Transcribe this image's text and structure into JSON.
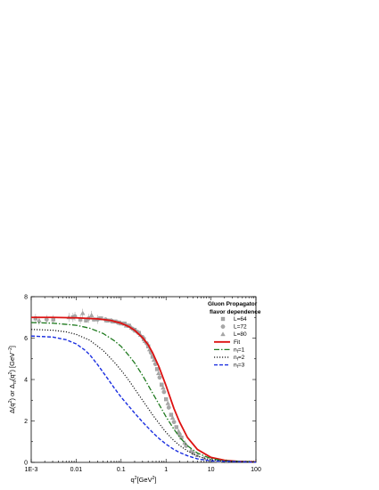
{
  "chart_data": {
    "type": "line",
    "xscale": "log",
    "xlim": [
      0.001,
      100
    ],
    "ylim": [
      0,
      8
    ],
    "xlabel": "q²[GeV²]",
    "ylabel": "Δ(q²) or Δ_{nf}(q²) [GeV⁻²]",
    "x_tick_labels": [
      "1E-3",
      "0.01",
      "0.1",
      "1",
      "10",
      "100"
    ],
    "y_tick_labels": [
      "0",
      "2",
      "4",
      "6",
      "8"
    ],
    "legend": {
      "title_line1": "Gluon Propagator",
      "title_line2": "flavor dependence",
      "position": "top-right"
    },
    "series": [
      {
        "name": "L=64",
        "kind": "markers",
        "marker": "square",
        "color": "#a8a8a8",
        "x": [
          0.00125,
          0.0031,
          0.0085,
          0.0124,
          0.0166,
          0.025,
          0.036,
          0.05,
          0.07,
          0.09,
          0.12,
          0.15,
          0.2,
          0.25,
          0.32,
          0.4,
          0.5,
          0.63,
          0.8,
          1.0,
          1.3,
          1.7,
          2.2
        ],
        "y": [
          6.95,
          6.9,
          7.0,
          6.9,
          6.85,
          6.9,
          6.95,
          6.85,
          6.8,
          6.75,
          6.7,
          6.6,
          6.4,
          6.25,
          5.95,
          5.6,
          5.1,
          4.5,
          3.75,
          3.05,
          2.3,
          1.7,
          1.2
        ]
      },
      {
        "name": "L=72",
        "kind": "markers",
        "marker": "circle",
        "color": "#a8a8a8",
        "x": [
          0.0022,
          0.0094,
          0.019,
          0.03,
          0.045,
          0.06,
          0.085,
          0.11,
          0.14,
          0.18,
          0.23,
          0.3,
          0.37,
          0.46,
          0.58,
          0.72,
          0.9,
          1.15,
          1.5,
          2.0,
          2.8,
          4.0
        ],
        "y": [
          6.9,
          7.05,
          6.95,
          6.9,
          6.9,
          6.85,
          6.75,
          6.7,
          6.6,
          6.45,
          6.3,
          6.05,
          5.75,
          5.3,
          4.75,
          4.1,
          3.4,
          2.65,
          1.95,
          1.35,
          0.8,
          0.45
        ]
      },
      {
        "name": "L=80",
        "kind": "markers",
        "marker": "triangle",
        "color": "#a8a8a8",
        "x": [
          0.0015,
          0.0069,
          0.014,
          0.022,
          0.032,
          0.047,
          0.065,
          0.08,
          0.1,
          0.13,
          0.17,
          0.21,
          0.27,
          0.34,
          0.43,
          0.54,
          0.68,
          0.86,
          1.1,
          1.4,
          1.9,
          2.6,
          3.6,
          5.0,
          7.0,
          10.0,
          15.0,
          22.0
        ],
        "y": [
          6.85,
          7.0,
          7.2,
          7.1,
          6.95,
          6.85,
          6.8,
          6.8,
          6.7,
          6.6,
          6.5,
          6.35,
          6.15,
          5.85,
          5.45,
          4.95,
          4.3,
          3.6,
          2.85,
          2.15,
          1.5,
          0.95,
          0.58,
          0.35,
          0.2,
          0.12,
          0.07,
          0.04
        ]
      },
      {
        "name": "Fit",
        "kind": "line",
        "color": "#dd1111",
        "width": 1.8,
        "dash": "",
        "x": [
          0.001,
          0.003,
          0.01,
          0.03,
          0.06,
          0.1,
          0.15,
          0.2,
          0.3,
          0.4,
          0.5,
          0.7,
          1.0,
          1.5,
          2.0,
          3.0,
          5.0,
          10.0,
          20.0,
          40.0,
          100.0
        ],
        "y": [
          7.0,
          7.0,
          6.98,
          6.93,
          6.85,
          6.72,
          6.55,
          6.38,
          6.02,
          5.68,
          5.3,
          4.6,
          3.7,
          2.6,
          1.95,
          1.2,
          0.62,
          0.24,
          0.1,
          0.05,
          0.02
        ]
      },
      {
        "name": "n_f=1",
        "kind": "line",
        "color": "#1f7a1f",
        "width": 1.3,
        "dash": "6,2,1.5,2",
        "x": [
          0.001,
          0.003,
          0.01,
          0.02,
          0.04,
          0.07,
          0.1,
          0.15,
          0.2,
          0.3,
          0.5,
          0.7,
          1.0,
          1.5,
          2.0,
          3.0,
          5.0,
          10.0,
          20.0,
          100.0
        ],
        "y": [
          6.75,
          6.72,
          6.62,
          6.48,
          6.22,
          5.88,
          5.6,
          5.15,
          4.8,
          4.2,
          3.35,
          2.8,
          2.2,
          1.6,
          1.22,
          0.8,
          0.45,
          0.18,
          0.08,
          0.02
        ]
      },
      {
        "name": "n_f=2",
        "kind": "line",
        "color": "#111111",
        "width": 1.2,
        "dash": "1.2,1.8",
        "x": [
          0.001,
          0.003,
          0.006,
          0.01,
          0.02,
          0.04,
          0.07,
          0.1,
          0.15,
          0.2,
          0.3,
          0.5,
          0.7,
          1.0,
          1.5,
          2.0,
          3.0,
          5.0,
          10.0,
          20.0,
          100.0
        ],
        "y": [
          6.42,
          6.38,
          6.3,
          6.18,
          5.9,
          5.4,
          4.85,
          4.45,
          3.95,
          3.55,
          3.0,
          2.3,
          1.88,
          1.45,
          1.05,
          0.82,
          0.55,
          0.3,
          0.12,
          0.05,
          0.02
        ]
      },
      {
        "name": "n_f=3",
        "kind": "line",
        "color": "#1a2ee0",
        "width": 1.4,
        "dash": "4,2",
        "x": [
          0.001,
          0.003,
          0.006,
          0.01,
          0.015,
          0.02,
          0.03,
          0.05,
          0.07,
          0.1,
          0.15,
          0.2,
          0.3,
          0.5,
          0.7,
          1.0,
          1.5,
          2.0,
          3.0,
          5.0,
          10.0,
          100.0
        ],
        "y": [
          6.1,
          6.05,
          5.92,
          5.72,
          5.45,
          5.2,
          4.72,
          4.05,
          3.6,
          3.15,
          2.7,
          2.38,
          1.95,
          1.45,
          1.15,
          0.88,
          0.62,
          0.48,
          0.32,
          0.17,
          0.07,
          0.01
        ]
      }
    ]
  }
}
